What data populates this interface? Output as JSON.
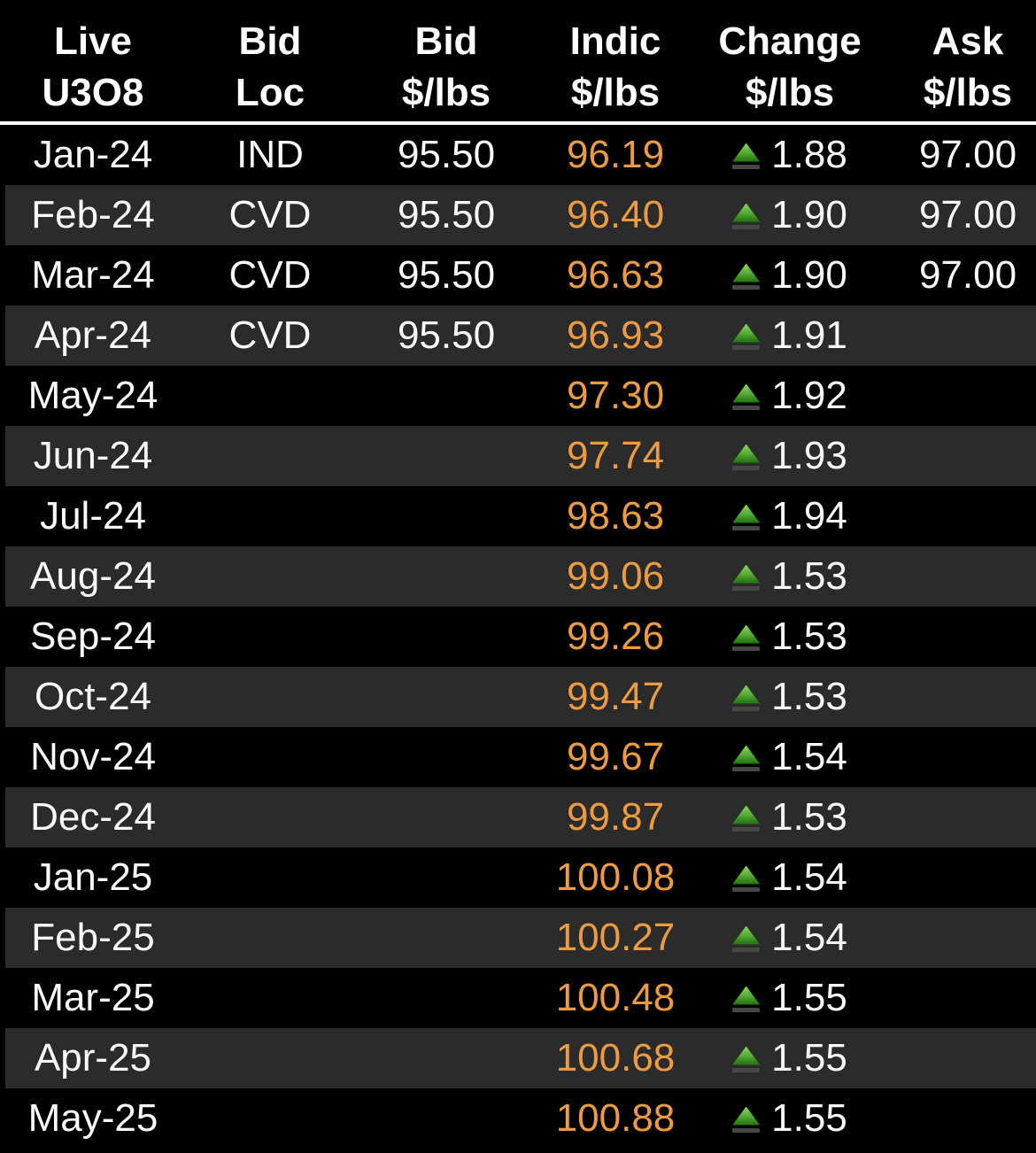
{
  "colors": {
    "background": "#000000",
    "row_alt_background": "#2b2b2b",
    "header_divider": "#ffffff",
    "indic_orange": "#ed9b41",
    "tick_green": "#4ea530",
    "tick_bar_grey": "#464646",
    "text_white": "#ffffff"
  },
  "table": {
    "columns": [
      {
        "id": "month",
        "label_line1": "Live",
        "label_line2": "U3O8"
      },
      {
        "id": "loc",
        "label_line1": "Bid",
        "label_line2": "Loc"
      },
      {
        "id": "bid",
        "label_line1": "Bid",
        "label_line2": "$/lbs"
      },
      {
        "id": "indic",
        "label_line1": "Indic",
        "label_line2": "$/lbs"
      },
      {
        "id": "change",
        "label_line1": "Change",
        "label_line2": "$/lbs"
      },
      {
        "id": "ask",
        "label_line1": "Ask",
        "label_line2": "$/lbs"
      }
    ],
    "rows": [
      {
        "month": "Jan-24",
        "loc": "IND",
        "bid": "95.50",
        "indic": "96.19",
        "change": "1.88",
        "change_direction": "up",
        "ask": "97.00"
      },
      {
        "month": "Feb-24",
        "loc": "CVD",
        "bid": "95.50",
        "indic": "96.40",
        "change": "1.90",
        "change_direction": "up",
        "ask": "97.00"
      },
      {
        "month": "Mar-24",
        "loc": "CVD",
        "bid": "95.50",
        "indic": "96.63",
        "change": "1.90",
        "change_direction": "up",
        "ask": "97.00"
      },
      {
        "month": "Apr-24",
        "loc": "CVD",
        "bid": "95.50",
        "indic": "96.93",
        "change": "1.91",
        "change_direction": "up",
        "ask": ""
      },
      {
        "month": "May-24",
        "loc": "",
        "bid": "",
        "indic": "97.30",
        "change": "1.92",
        "change_direction": "up",
        "ask": ""
      },
      {
        "month": "Jun-24",
        "loc": "",
        "bid": "",
        "indic": "97.74",
        "change": "1.93",
        "change_direction": "up",
        "ask": ""
      },
      {
        "month": "Jul-24",
        "loc": "",
        "bid": "",
        "indic": "98.63",
        "change": "1.94",
        "change_direction": "up",
        "ask": ""
      },
      {
        "month": "Aug-24",
        "loc": "",
        "bid": "",
        "indic": "99.06",
        "change": "1.53",
        "change_direction": "up",
        "ask": ""
      },
      {
        "month": "Sep-24",
        "loc": "",
        "bid": "",
        "indic": "99.26",
        "change": "1.53",
        "change_direction": "up",
        "ask": ""
      },
      {
        "month": "Oct-24",
        "loc": "",
        "bid": "",
        "indic": "99.47",
        "change": "1.53",
        "change_direction": "up",
        "ask": ""
      },
      {
        "month": "Nov-24",
        "loc": "",
        "bid": "",
        "indic": "99.67",
        "change": "1.54",
        "change_direction": "up",
        "ask": ""
      },
      {
        "month": "Dec-24",
        "loc": "",
        "bid": "",
        "indic": "99.87",
        "change": "1.53",
        "change_direction": "up",
        "ask": ""
      },
      {
        "month": "Jan-25",
        "loc": "",
        "bid": "",
        "indic": "100.08",
        "change": "1.54",
        "change_direction": "up",
        "ask": ""
      },
      {
        "month": "Feb-25",
        "loc": "",
        "bid": "",
        "indic": "100.27",
        "change": "1.54",
        "change_direction": "up",
        "ask": ""
      },
      {
        "month": "Mar-25",
        "loc": "",
        "bid": "",
        "indic": "100.48",
        "change": "1.55",
        "change_direction": "up",
        "ask": ""
      },
      {
        "month": "Apr-25",
        "loc": "",
        "bid": "",
        "indic": "100.68",
        "change": "1.55",
        "change_direction": "up",
        "ask": ""
      },
      {
        "month": "May-25",
        "loc": "",
        "bid": "",
        "indic": "100.88",
        "change": "1.55",
        "change_direction": "up",
        "ask": ""
      }
    ]
  }
}
